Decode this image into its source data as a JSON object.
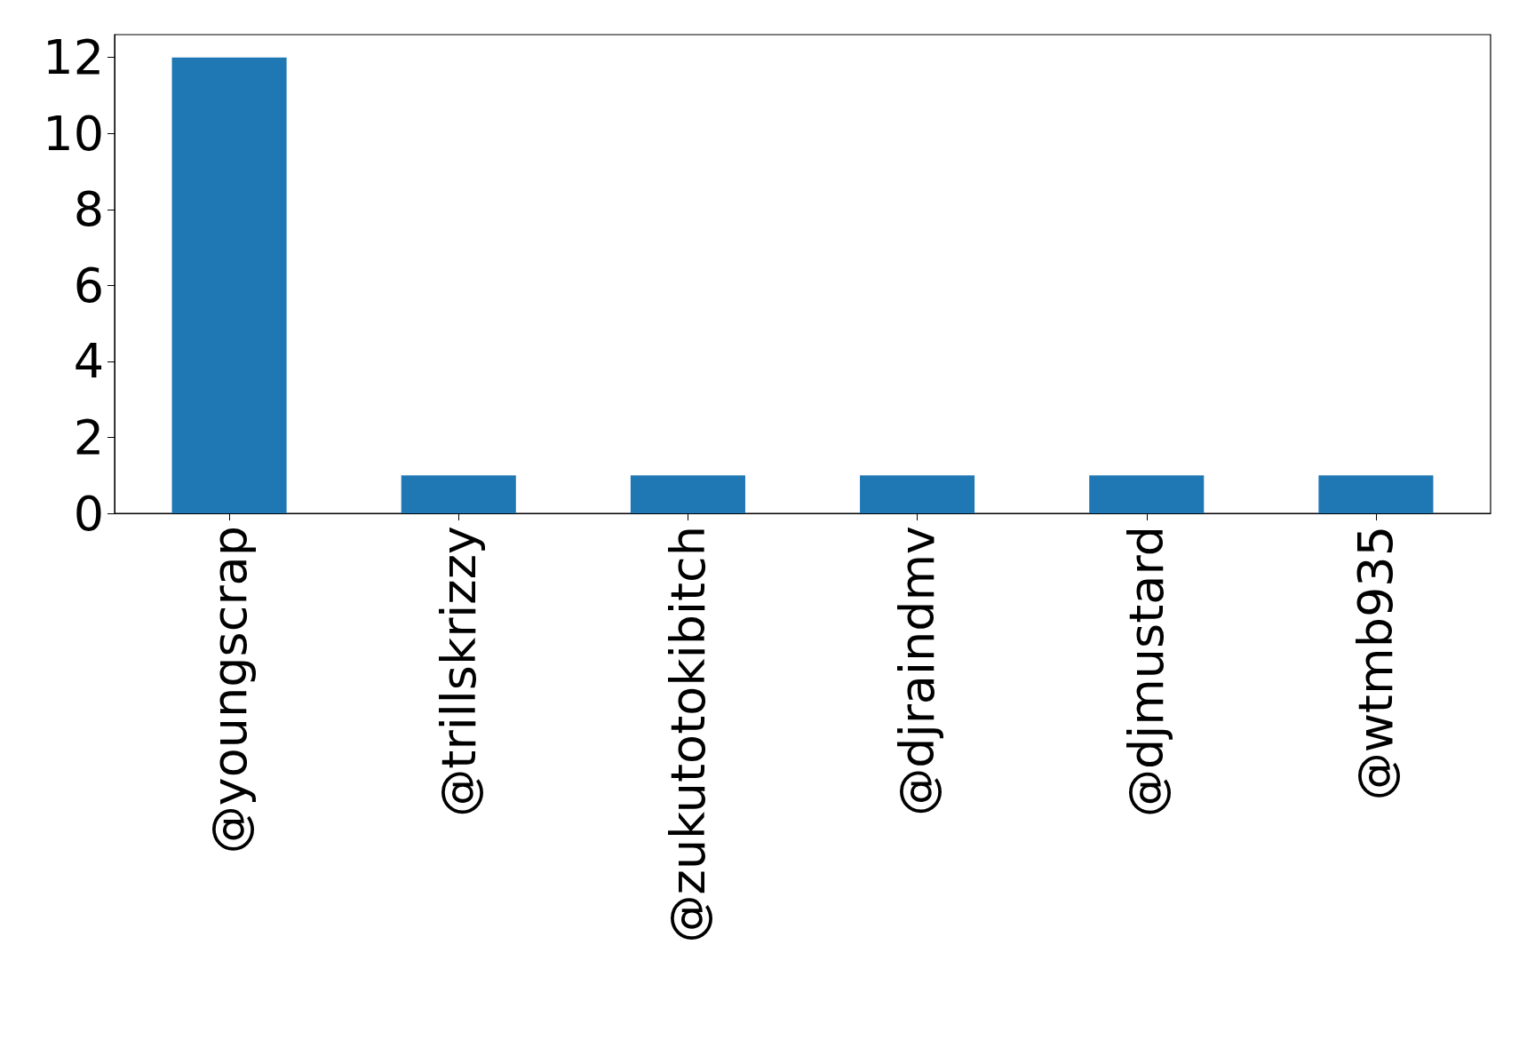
{
  "chart_data": {
    "type": "bar",
    "categories": [
      "@youngscrap",
      "@trillskrizzy",
      "@zukutotokibitch",
      "@djraindmv",
      "@djmustard",
      "@wtmb935"
    ],
    "values": [
      12,
      1,
      1,
      1,
      1,
      1
    ],
    "color": "#1f77b4",
    "ylim": [
      0,
      12.6
    ],
    "yticks": [
      0,
      2,
      4,
      6,
      8,
      10,
      12
    ],
    "grid": false
  }
}
